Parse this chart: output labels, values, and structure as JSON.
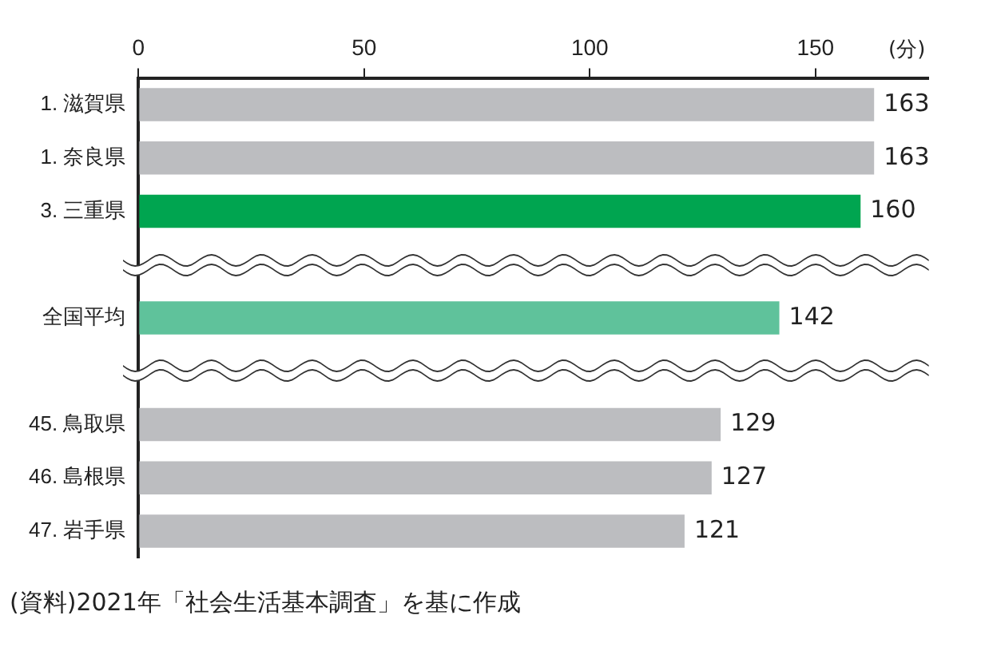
{
  "chart_data": {
    "type": "bar",
    "orientation": "horizontal",
    "xlabel": "(分)",
    "categories": [
      "1. 滋賀県",
      "1. 奈良県",
      "3. 三重県",
      null,
      "全国平均",
      null,
      "45. 鳥取県",
      "46. 島根県",
      "47. 岩手県"
    ],
    "values": [
      163,
      163,
      160,
      null,
      142,
      null,
      129,
      127,
      121
    ],
    "colors": [
      "#bcbdc0",
      "#bcbdc0",
      "#00a550",
      null,
      "#5fc29b",
      null,
      "#bcbdc0",
      "#bcbdc0",
      "#bcbdc0"
    ],
    "xlim": [
      0,
      175
    ],
    "xticks": [
      0,
      50,
      100,
      150
    ],
    "data_labels": true,
    "grid": false,
    "legend": false,
    "annotations": [
      "(資料)2021年「社会生活基本調査」を基に作成"
    ]
  }
}
